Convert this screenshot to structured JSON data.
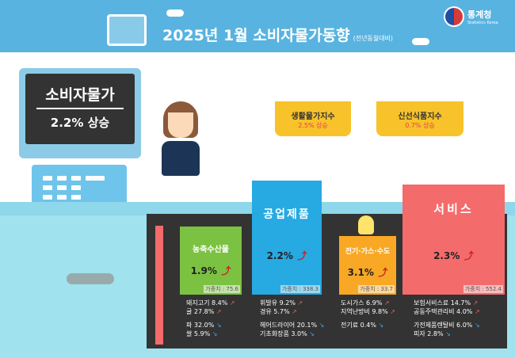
{
  "header": {
    "title": "2025년 1월 소비자물가동향",
    "subtitle": "(전년동월대비)",
    "logo": "통계청",
    "logo_sub": "Statistics Korea"
  },
  "sign": {
    "title": "소비자물가",
    "value": "2.2% 상승"
  },
  "baskets": [
    {
      "label": "생활물가지수",
      "value": "2.5% 상승"
    },
    {
      "label": "신선식품지수",
      "value": "0.7% 상승"
    }
  ],
  "categories": [
    {
      "name": "농축수산물",
      "value": "1.9%",
      "weight": "가중치 : 75.6",
      "color": "#7cc242",
      "up": [
        "돼지고기 8.4%",
        "귤 27.8%"
      ],
      "down": [
        "파 32.0%",
        "쌀 5.9%"
      ]
    },
    {
      "name": "공업제품",
      "value": "2.2%",
      "weight": "가중치 : 338.3",
      "color": "#27a9e1",
      "up": [
        "휘발유 9.2%",
        "경유 5.7%"
      ],
      "down": [
        "헤어드라이어 20.1%",
        "기초화장품 3.0%"
      ]
    },
    {
      "name": "전기·가스·수도",
      "value": "3.1%",
      "weight": "가중치 : 33.7",
      "color": "#f9a825",
      "up": [
        "도시가스 6.9%",
        "지역난방비 9.8%"
      ],
      "down": [
        "전기료 0.4%"
      ]
    },
    {
      "name": "서비스",
      "value": "2.3%",
      "weight": "가중치 : 552.4",
      "color": "#f46b6b",
      "up": [
        "보험서비스료 14.7%",
        "공동주택관리비 4.0%"
      ],
      "down": [
        "가전제품렌탈비 6.0%",
        "피자 2.8%"
      ]
    }
  ],
  "icons": {
    "up": "arrow-up-icon",
    "down": "arrow-down-icon"
  }
}
